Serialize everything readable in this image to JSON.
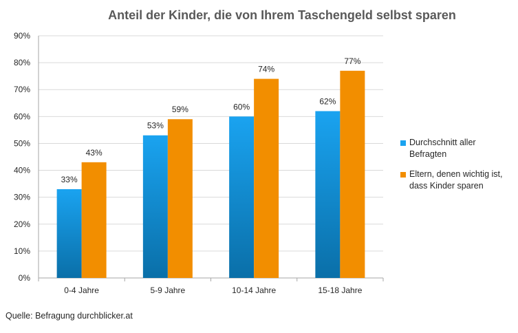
{
  "chart_data": {
    "type": "bar",
    "title": "Anteil der Kinder, die von Ihrem Taschengeld selbst sparen",
    "categories": [
      "0-4 Jahre",
      "5-9 Jahre",
      "10-14 Jahre",
      "15-18 Jahre"
    ],
    "series": [
      {
        "name": "Durchschnitt aller Befragten",
        "name_lines": [
          "Durchschnitt aller",
          "Befragten"
        ],
        "values": [
          33,
          53,
          60,
          62
        ],
        "labels": [
          "33%",
          "53%",
          "60%",
          "62%"
        ],
        "color_top": "#1AA3F0",
        "color_bottom": "#0A6FA8"
      },
      {
        "name": "Eltern, denen wichtig ist, dass Kinder sparen",
        "name_lines": [
          "Eltern, denen wichtig ist,",
          "dass Kinder sparen"
        ],
        "values": [
          43,
          59,
          74,
          77
        ],
        "labels": [
          "43%",
          "59%",
          "74%",
          "77%"
        ],
        "color": "#F28E00"
      }
    ],
    "y_ticks": [
      "0%",
      "10%",
      "20%",
      "30%",
      "40%",
      "50%",
      "60%",
      "70%",
      "80%",
      "90%"
    ],
    "ylim": [
      0,
      90
    ],
    "grid": true,
    "legend_position": "right",
    "xlabel": "",
    "ylabel": ""
  },
  "source_note": "Quelle: Befragung durchblicker.at"
}
